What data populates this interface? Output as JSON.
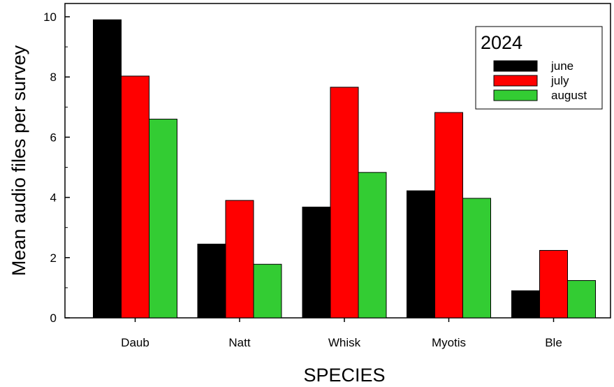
{
  "chart_data": {
    "type": "bar",
    "categories": [
      "Daub",
      "Natt",
      "Whisk",
      "Myotis",
      "Ble"
    ],
    "series": [
      {
        "name": "june",
        "color": "#000000",
        "values": [
          9.9,
          2.45,
          3.68,
          4.22,
          0.9
        ]
      },
      {
        "name": "july",
        "color": "#ff0000",
        "values": [
          8.03,
          3.9,
          7.66,
          6.82,
          2.24
        ]
      },
      {
        "name": "august",
        "color": "#33cc33",
        "values": [
          6.6,
          1.78,
          4.83,
          3.97,
          1.24
        ]
      }
    ],
    "xlabel": "SPECIES",
    "ylabel": "Mean audio files per survey",
    "ylim": [
      0,
      10.5
    ],
    "yticks": [
      "0",
      "2",
      "4",
      "6",
      "8",
      "10"
    ],
    "ytick_values": [
      0,
      2,
      4,
      6,
      8,
      10
    ],
    "legend_title": "2024",
    "legend_position": "top-right",
    "grid": false
  }
}
